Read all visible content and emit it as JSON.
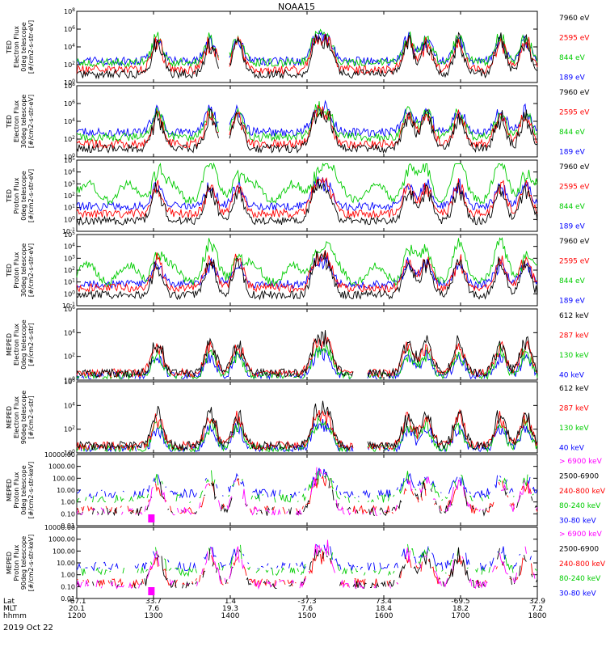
{
  "chart_data": {
    "type": "line",
    "title": "NOAA15",
    "date_label": "2019 Oct 22",
    "x_axis": {
      "rows": [
        {
          "label": "Lat",
          "values": [
            "-67.1",
            "33.7",
            "1.4",
            "-37.3",
            "73.4",
            "-69.5",
            "32.9"
          ]
        },
        {
          "label": "MLT",
          "values": [
            "20.1",
            "7.6",
            "19.3",
            "7.6",
            "18.4",
            "18.2",
            "7.2"
          ]
        },
        {
          "label": "hhmm",
          "values": [
            "1200",
            "1300",
            "1400",
            "1500",
            "1600",
            "1700",
            "1800"
          ]
        }
      ],
      "xlim": [
        1200,
        1800
      ]
    },
    "panels": [
      {
        "id": "ted-e-0",
        "ylabel_lines": [
          "TED",
          "Electron Flux",
          "0deg telescope",
          "[#/cm2-s-str-eV]"
        ],
        "log": true,
        "yticks": [
          "10^0",
          "10^2",
          "10^4",
          "10^6",
          "10^8"
        ],
        "legend": [
          {
            "label": "7960 eV",
            "color": "#000000"
          },
          {
            "label": "2595 eV",
            "color": "#ff0000"
          },
          {
            "label": "844 eV",
            "color": "#00cc00"
          },
          {
            "label": "189 eV",
            "color": "#0000ff"
          }
        ]
      },
      {
        "id": "ted-e-30",
        "ylabel_lines": [
          "TED",
          "Electron Flux",
          "30deg telescope",
          "[#/cm2-s-str-eV]"
        ],
        "log": true,
        "yticks": [
          "10^0",
          "10^2",
          "10^4",
          "10^6",
          "10^8"
        ],
        "legend": [
          {
            "label": "7960 eV",
            "color": "#000000"
          },
          {
            "label": "2595 eV",
            "color": "#ff0000"
          },
          {
            "label": "844 eV",
            "color": "#00cc00"
          },
          {
            "label": "189 eV",
            "color": "#0000ff"
          }
        ]
      },
      {
        "id": "ted-p-0",
        "ylabel_lines": [
          "TED",
          "Proton Flux",
          "0deg telescope",
          "[#/cm2-s-str-eV]"
        ],
        "log": true,
        "yticks": [
          "10^-1",
          "10^0",
          "10^1",
          "10^2",
          "10^3",
          "10^4",
          "10^5"
        ],
        "legend": [
          {
            "label": "7960 eV",
            "color": "#000000"
          },
          {
            "label": "2595 eV",
            "color": "#ff0000"
          },
          {
            "label": "844 eV",
            "color": "#00cc00"
          },
          {
            "label": "189 eV",
            "color": "#0000ff"
          }
        ]
      },
      {
        "id": "ted-p-30",
        "ylabel_lines": [
          "TED",
          "Proton Flux",
          "30deg telescope",
          "[#/cm2-s-str-eV]"
        ],
        "log": true,
        "yticks": [
          "10^-1",
          "10^0",
          "10^1",
          "10^2",
          "10^3",
          "10^4",
          "10^5"
        ],
        "legend": [
          {
            "label": "7960 eV",
            "color": "#000000"
          },
          {
            "label": "2595 eV",
            "color": "#ff0000"
          },
          {
            "label": "844 eV",
            "color": "#00cc00"
          },
          {
            "label": "189 eV",
            "color": "#0000ff"
          }
        ]
      },
      {
        "id": "meped-e-0",
        "ylabel_lines": [
          "MEPED",
          "Electron Flux",
          "0deg telescope",
          "[#/cm2-s-str]"
        ],
        "log": true,
        "yticks": [
          "10^0",
          "10^2",
          "10^4",
          "10^6"
        ],
        "legend": [
          {
            "label": "612 keV",
            "color": "#000000"
          },
          {
            "label": "287 keV",
            "color": "#ff0000"
          },
          {
            "label": "130 keV",
            "color": "#00cc00"
          },
          {
            "label": "40 keV",
            "color": "#0000ff"
          }
        ]
      },
      {
        "id": "meped-e-90",
        "ylabel_lines": [
          "MEPED",
          "Electron Flux",
          "90deg telescope",
          "[#/cm2-s-str]"
        ],
        "log": true,
        "yticks": [
          "10^0",
          "10^2",
          "10^4",
          "10^6"
        ],
        "legend": [
          {
            "label": "612 keV",
            "color": "#000000"
          },
          {
            "label": "287 keV",
            "color": "#ff0000"
          },
          {
            "label": "130 keV",
            "color": "#00cc00"
          },
          {
            "label": "40 keV",
            "color": "#0000ff"
          }
        ]
      },
      {
        "id": "meped-p-0",
        "ylabel_lines": [
          "MEPED",
          "Proton Flux",
          "0deg telescope",
          "[#/cm2-s-str-keV]"
        ],
        "log": false,
        "yticks": [
          "0.01",
          "0.10",
          "1.00",
          "10.00",
          "100.00",
          "1000.00",
          "10000.00"
        ],
        "legend": [
          {
            "label": "> 6900 keV",
            "color": "#ff00ff"
          },
          {
            "label": "2500-6900",
            "color": "#000000"
          },
          {
            "label": "240-800 keV",
            "color": "#ff0000"
          },
          {
            "label": "80-240 keV",
            "color": "#00cc00"
          },
          {
            "label": "30-80 keV",
            "color": "#0000ff"
          }
        ]
      },
      {
        "id": "meped-p-90",
        "ylabel_lines": [
          "MEPED",
          "Proton Flux",
          "90deg telescope",
          "[#/cm2-s-str-keV]"
        ],
        "log": false,
        "yticks": [
          "0.01",
          "0.10",
          "1.00",
          "10.00",
          "100.00",
          "1000.00",
          "10000.00"
        ],
        "legend": [
          {
            "label": "> 6900 keV",
            "color": "#ff00ff"
          },
          {
            "label": "2500-6900",
            "color": "#000000"
          },
          {
            "label": "240-800 keV",
            "color": "#ff0000"
          },
          {
            "label": "80-240 keV",
            "color": "#00cc00"
          },
          {
            "label": "30-80 keV",
            "color": "#0000ff"
          }
        ]
      }
    ]
  }
}
